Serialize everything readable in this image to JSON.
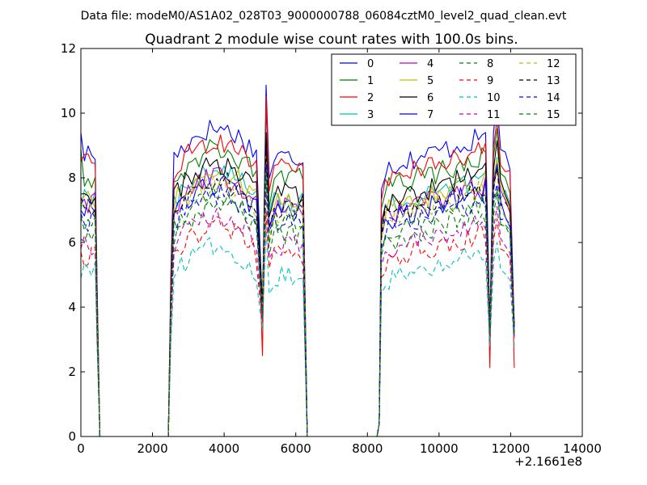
{
  "header": {
    "suptitle": "Data file: modeM0/AS1A02_028T03_9000000788_06084cztM0_level2_quad_clean.evt"
  },
  "chart_data": {
    "type": "line",
    "title": "Quadrant 2 module wise count rates with 100.0s bins.",
    "xlabel": "",
    "ylabel": "",
    "xlim": [
      0,
      14000
    ],
    "ylim": [
      0,
      12
    ],
    "x_offset_label": "+2.1661e8",
    "xticks": [
      0,
      2000,
      4000,
      6000,
      8000,
      10000,
      12000,
      14000
    ],
    "yticks": [
      0,
      2,
      4,
      6,
      8,
      10,
      12
    ],
    "xtick_labels": [
      "0",
      "2000",
      "4000",
      "6000",
      "8000",
      "10000",
      "12000",
      "14000"
    ],
    "ytick_labels": [
      "0",
      "2",
      "4",
      "6",
      "8",
      "10",
      "12"
    ],
    "grid": false,
    "legend_position": "top-right",
    "legend_columns": 4,
    "segments": [
      {
        "start": 0,
        "end": 500
      },
      {
        "start": 2450,
        "end": 6300
      },
      {
        "start": 8350,
        "end": 12100
      }
    ],
    "series": [
      {
        "name": "0",
        "color": "#0000ff",
        "dash": "solid",
        "level": 9.0,
        "start": 9.4,
        "dip": 3.9
      },
      {
        "name": "1",
        "color": "#008000",
        "dash": "solid",
        "level": 8.3,
        "start": 8.9,
        "dip": 3.7
      },
      {
        "name": "2",
        "color": "#ff0000",
        "dash": "solid",
        "level": 8.6,
        "start": 8.5,
        "dip": 2.5
      },
      {
        "name": "3",
        "color": "#00bfbf",
        "dash": "solid",
        "level": 7.6,
        "start": 7.0,
        "dip": 3.8
      },
      {
        "name": "4",
        "color": "#bf00bf",
        "dash": "solid",
        "level": 7.4,
        "start": 7.2,
        "dip": 3.9
      },
      {
        "name": "5",
        "color": "#bfbf00",
        "dash": "solid",
        "level": 7.6,
        "start": 7.3,
        "dip": 4.0
      },
      {
        "name": "6",
        "color": "#000000",
        "dash": "solid",
        "level": 7.8,
        "start": 7.5,
        "dip": 4.1
      },
      {
        "name": "7",
        "color": "#0000ff",
        "dash": "solid",
        "level": 7.2,
        "start": 7.0,
        "dip": 3.7
      },
      {
        "name": "8",
        "color": "#008000",
        "dash": "dashed",
        "level": 6.5,
        "start": 6.1,
        "dip": 3.6
      },
      {
        "name": "9",
        "color": "#ff0000",
        "dash": "dashed",
        "level": 5.8,
        "start": 5.7,
        "dip": 3.5
      },
      {
        "name": "10",
        "color": "#00bfbf",
        "dash": "dashed",
        "level": 5.2,
        "start": 4.9,
        "dip": 3.3
      },
      {
        "name": "11",
        "color": "#bf00bf",
        "dash": "dashed",
        "level": 6.2,
        "start": 5.8,
        "dip": 3.6
      },
      {
        "name": "12",
        "color": "#bfbf00",
        "dash": "dashed",
        "level": 7.2,
        "start": 7.2,
        "dip": 3.9
      },
      {
        "name": "13",
        "color": "#000000",
        "dash": "dashed",
        "level": 7.3,
        "start": 7.4,
        "dip": 4.0
      },
      {
        "name": "14",
        "color": "#0000ff",
        "dash": "dashed",
        "level": 6.9,
        "start": 6.9,
        "dip": 3.8
      },
      {
        "name": "15",
        "color": "#008000",
        "dash": "dashed",
        "level": 6.8,
        "start": 6.8,
        "dip": 3.7
      }
    ]
  }
}
